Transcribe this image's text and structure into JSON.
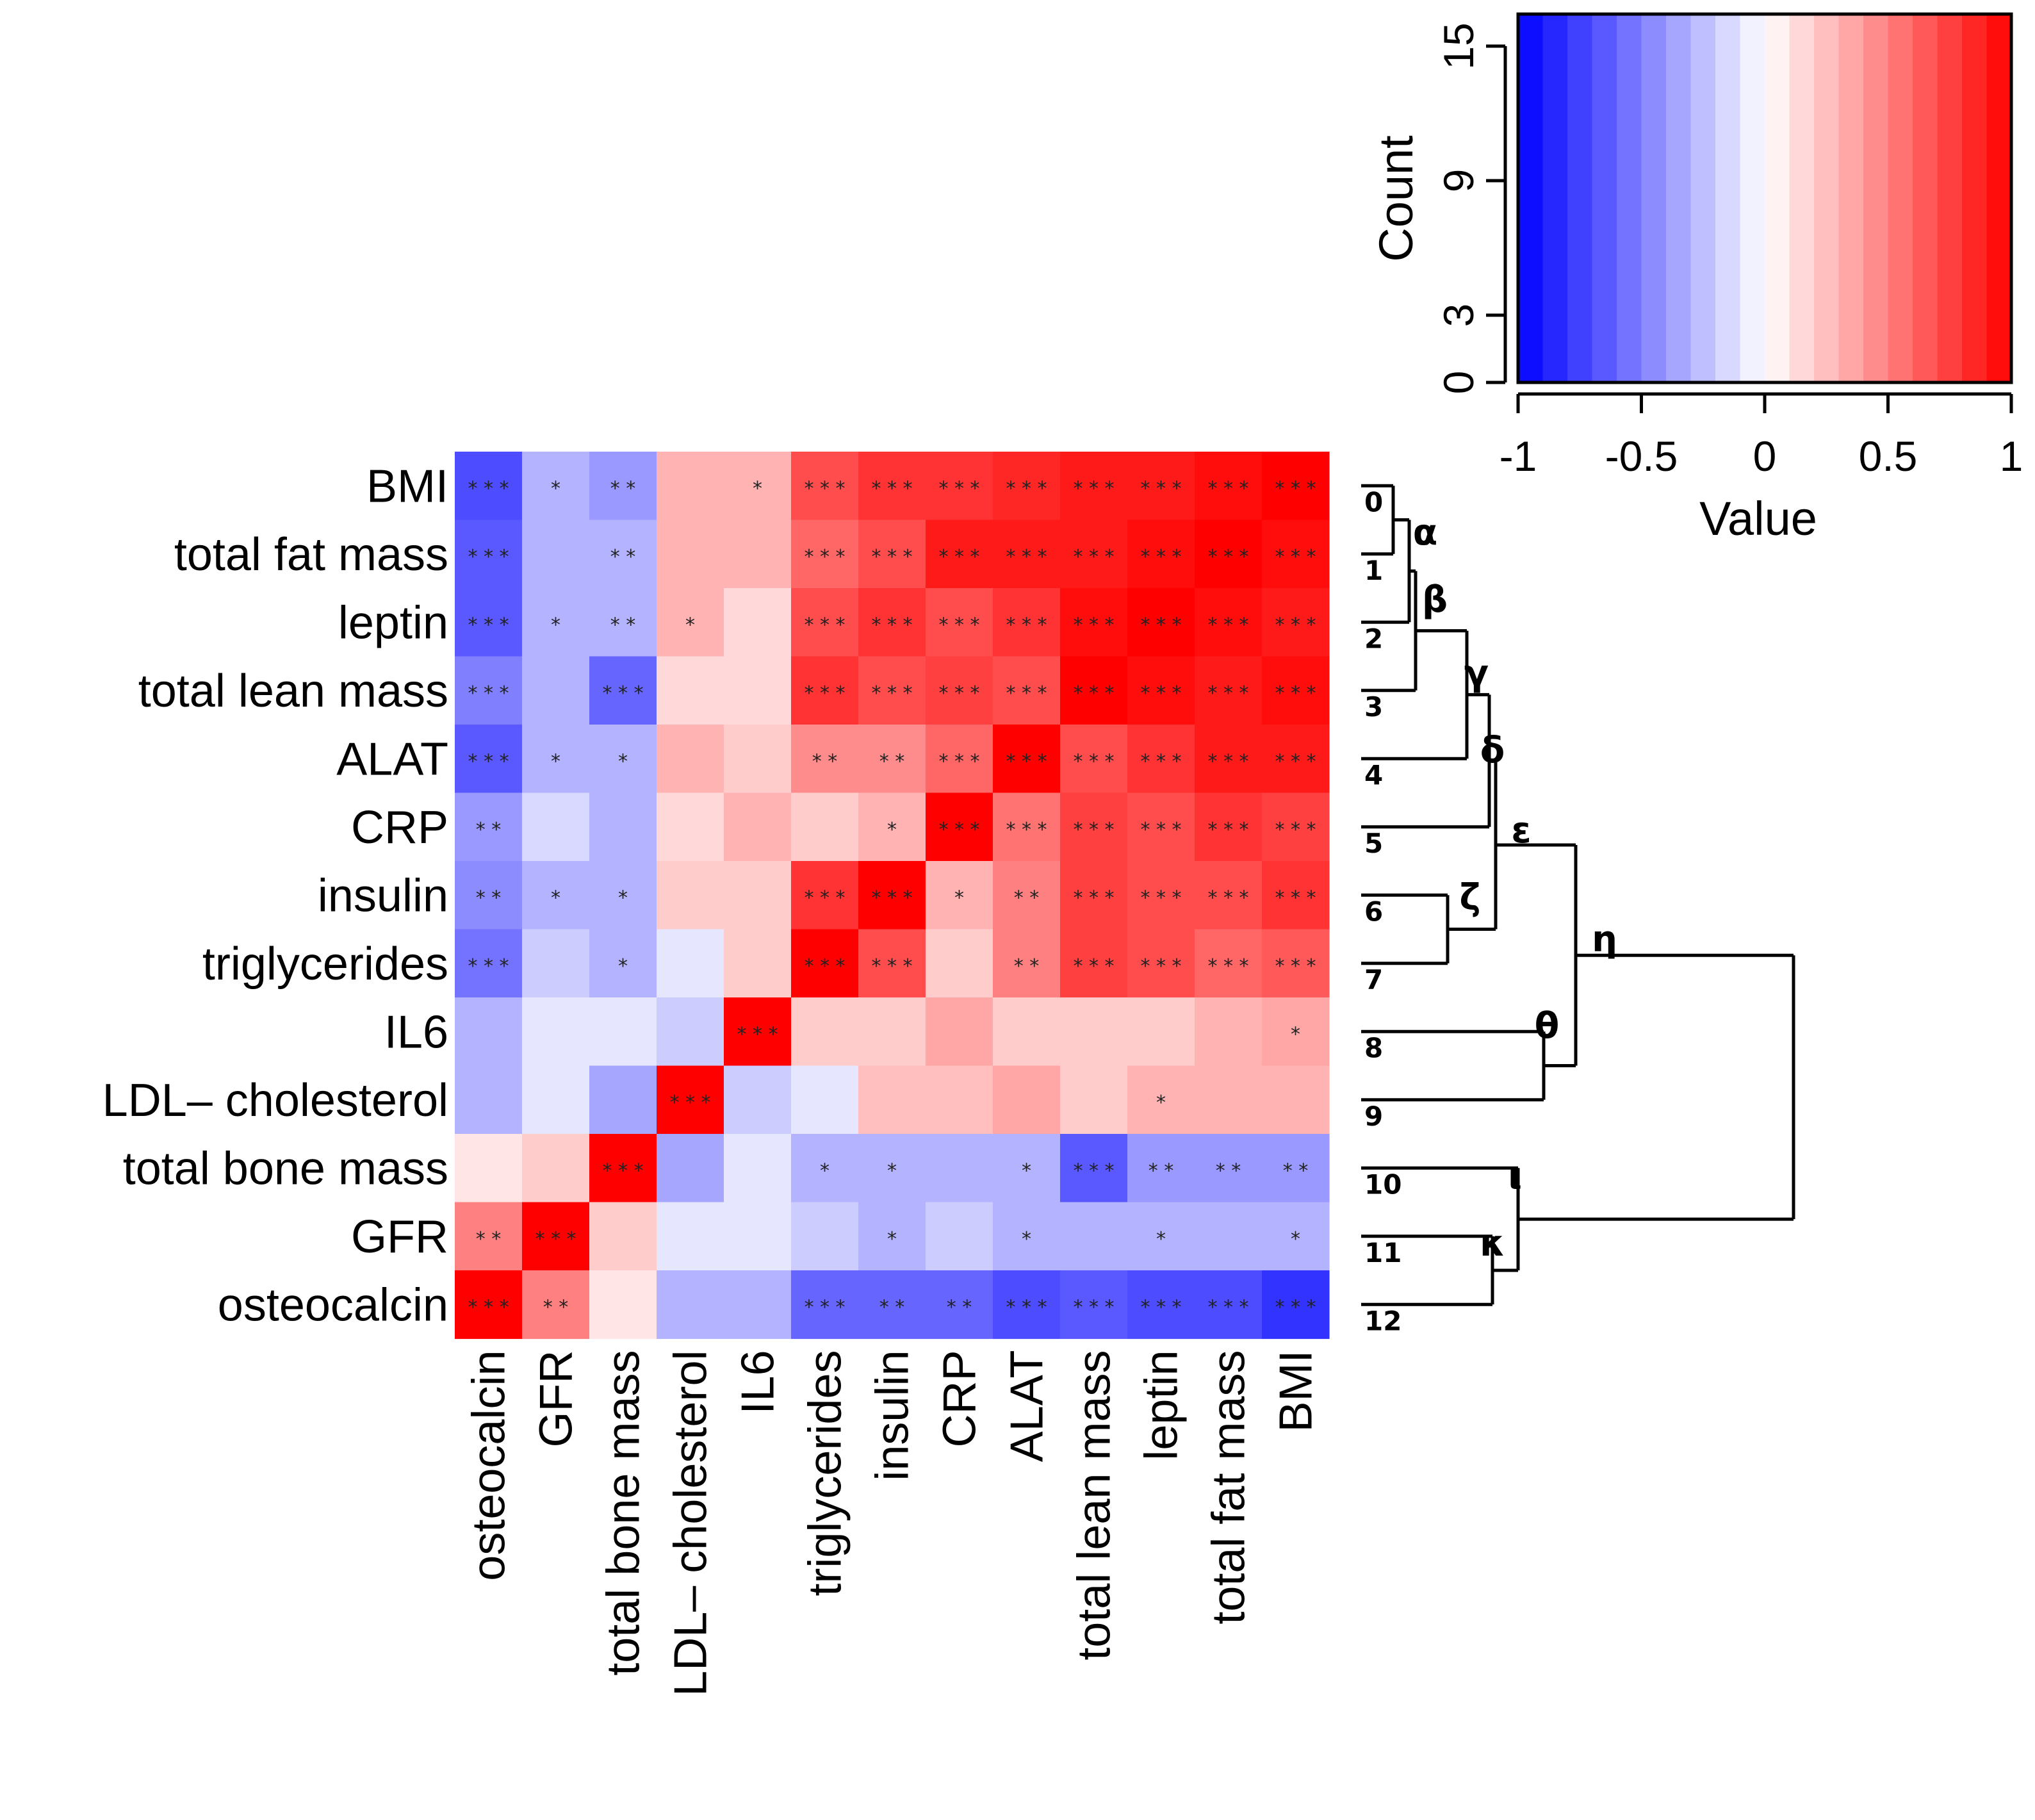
{
  "chart_data": {
    "type": "heatmap",
    "row_labels": [
      "BMI",
      "total fat mass",
      "leptin",
      "total lean mass",
      "ALAT",
      "CRP",
      "insulin",
      "triglycerides",
      "IL6",
      "LDL– cholesterol",
      "total bone mass",
      "GFR",
      "osteocalcin"
    ],
    "column_labels": [
      "osteocalcin",
      "GFR",
      "total bone mass",
      "LDL– cholesterol",
      "IL6",
      "triglycerides",
      "insulin",
      "CRP",
      "ALAT",
      "total lean mass",
      "leptin",
      "total fat mass",
      "BMI"
    ],
    "values": [
      [
        -0.7,
        -0.3,
        -0.4,
        0.3,
        0.3,
        0.7,
        0.8,
        0.8,
        0.85,
        0.9,
        0.9,
        0.95,
        1.0
      ],
      [
        -0.65,
        -0.3,
        -0.3,
        0.3,
        0.3,
        0.6,
        0.7,
        0.9,
        0.9,
        0.9,
        0.95,
        1.0,
        0.95
      ],
      [
        -0.65,
        -0.3,
        -0.3,
        0.3,
        0.15,
        0.7,
        0.8,
        0.7,
        0.8,
        0.95,
        1.0,
        0.95,
        0.9
      ],
      [
        -0.5,
        -0.3,
        -0.6,
        0.15,
        0.15,
        0.8,
        0.7,
        0.75,
        0.7,
        1.0,
        0.95,
        0.9,
        0.95
      ],
      [
        -0.65,
        -0.3,
        -0.3,
        0.3,
        0.2,
        0.45,
        0.45,
        0.6,
        1.0,
        0.7,
        0.8,
        0.9,
        0.9
      ],
      [
        -0.4,
        -0.15,
        -0.3,
        0.15,
        0.3,
        0.2,
        0.3,
        1.0,
        0.55,
        0.75,
        0.7,
        0.8,
        0.75
      ],
      [
        -0.45,
        -0.3,
        -0.3,
        0.2,
        0.2,
        0.8,
        1.0,
        0.3,
        0.5,
        0.75,
        0.7,
        0.7,
        0.8
      ],
      [
        -0.55,
        -0.2,
        -0.3,
        -0.1,
        0.2,
        1.0,
        0.7,
        0.2,
        0.5,
        0.75,
        0.7,
        0.6,
        0.65
      ],
      [
        -0.3,
        -0.1,
        -0.1,
        -0.2,
        1.0,
        0.2,
        0.2,
        0.35,
        0.2,
        0.2,
        0.2,
        0.3,
        0.35
      ],
      [
        -0.3,
        -0.1,
        -0.35,
        1.0,
        -0.2,
        -0.1,
        0.25,
        0.25,
        0.35,
        0.2,
        0.3,
        0.3,
        0.3
      ],
      [
        0.1,
        0.2,
        1.0,
        -0.35,
        -0.1,
        -0.3,
        -0.3,
        -0.3,
        -0.3,
        -0.65,
        -0.4,
        -0.4,
        -0.4
      ],
      [
        0.5,
        1.0,
        0.2,
        -0.1,
        -0.1,
        -0.2,
        -0.3,
        -0.2,
        -0.3,
        -0.3,
        -0.3,
        -0.3,
        -0.3
      ],
      [
        1.0,
        0.5,
        0.1,
        -0.3,
        -0.3,
        -0.6,
        -0.6,
        -0.6,
        -0.7,
        -0.65,
        -0.7,
        -0.7,
        -0.8
      ]
    ],
    "significance": [
      [
        "***",
        "*",
        "**",
        "",
        "*",
        "***",
        "***",
        "***",
        "***",
        "***",
        "***",
        "***",
        "***"
      ],
      [
        "***",
        "",
        "**",
        "",
        "",
        "***",
        "***",
        "***",
        "***",
        "***",
        "***",
        "***",
        "***"
      ],
      [
        "***",
        "*",
        "**",
        "*",
        "",
        "***",
        "***",
        "***",
        "***",
        "***",
        "***",
        "***",
        "***"
      ],
      [
        "***",
        "",
        "***",
        "",
        "",
        "***",
        "***",
        "***",
        "***",
        "***",
        "***",
        "***",
        "***"
      ],
      [
        "***",
        "*",
        "*",
        "",
        "",
        "**",
        "**",
        "***",
        "***",
        "***",
        "***",
        "***",
        "***"
      ],
      [
        "**",
        "",
        "",
        "",
        "",
        "",
        "*",
        "***",
        "***",
        "***",
        "***",
        "***",
        "***"
      ],
      [
        "**",
        "*",
        "*",
        "",
        "",
        "***",
        "***",
        "*",
        "**",
        "***",
        "***",
        "***",
        "***"
      ],
      [
        "***",
        "",
        "*",
        "",
        "",
        "***",
        "***",
        "",
        "**",
        "***",
        "***",
        "***",
        "***"
      ],
      [
        "",
        "",
        "",
        "",
        "***",
        "",
        "",
        "",
        "",
        "",
        "",
        "",
        "*"
      ],
      [
        "",
        "",
        "",
        "***",
        "",
        "",
        "",
        "",
        "",
        "",
        "*",
        "",
        ""
      ],
      [
        "",
        "",
        "***",
        "",
        "",
        "*",
        "*",
        "",
        "*",
        "***",
        "**",
        "**",
        "**"
      ],
      [
        "**",
        "***",
        "",
        "",
        "",
        "",
        "*",
        "",
        "*",
        "",
        "*",
        "",
        "*"
      ],
      [
        "***",
        "**",
        "",
        "",
        "",
        "***",
        "**",
        "**",
        "***",
        "***",
        "***",
        "***",
        "***"
      ]
    ],
    "color_scale": {
      "min": -1,
      "max": 1,
      "low_color": "#0000ff",
      "mid_color": "#ffffff",
      "high_color": "#ff0000",
      "steps": 20
    },
    "legend": {
      "type": "color-key-histogram",
      "xlabel": "Value",
      "ylabel": "Count",
      "x_ticks": [
        "-1",
        "-0.5",
        "0",
        "0.5",
        "1"
      ],
      "y_ticks": [
        "0",
        "3",
        "9",
        "15"
      ],
      "xlim": [
        -1,
        1
      ],
      "ylim": [
        0,
        15
      ],
      "placement": "top-right"
    },
    "dendrogram": {
      "side": "right",
      "leaf_numbers": [
        "0",
        "1",
        "2",
        "3",
        "4",
        "5",
        "6",
        "7",
        "8",
        "9",
        "10",
        "11",
        "12"
      ],
      "node_labels": [
        "α",
        "β",
        "γ",
        "δ",
        "ε",
        "ζ",
        "η",
        "θ",
        "ι",
        "κ"
      ]
    }
  }
}
